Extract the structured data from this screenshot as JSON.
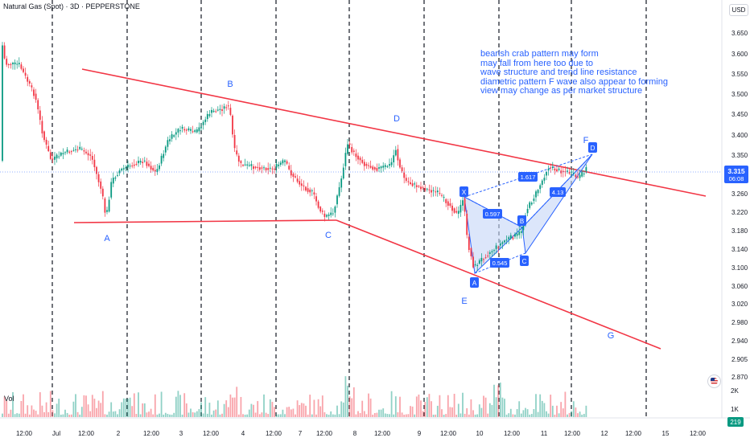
{
  "header": {
    "title": "Natural Gas (Spot) · 3D · PEPPERSTONE"
  },
  "currency": "USD",
  "price_axis": {
    "ticks": [
      "3.650",
      "3.600",
      "3.550",
      "3.500",
      "3.450",
      "3.400",
      "3.350",
      "3.260",
      "3.220",
      "3.180",
      "3.140",
      "3.100",
      "3.060",
      "3.020",
      "2.980",
      "2.940",
      "2.905",
      "2.870"
    ],
    "current_price": "3.315",
    "countdown": "06:08",
    "current_color": "#2962ff"
  },
  "volume": {
    "label": "Vol",
    "ticks": [
      "2K",
      "1K"
    ],
    "current": "219"
  },
  "time_axis": {
    "labels": [
      "12:00",
      "Jul",
      "12:00",
      "2",
      "12:00",
      "3",
      "12:00",
      "4",
      "12:00",
      "7",
      "12:00",
      "8",
      "12:00",
      "9",
      "12:00",
      "10",
      "12:00",
      "11",
      "12:00",
      "12",
      "12:00",
      "15",
      "12:00"
    ]
  },
  "annotation_note": {
    "lines": [
      "bearish crab pattern may form",
      "may fall from here too due to",
      "wave structure and trend line resistance",
      "diametric pattern F wave also appear to forming",
      "view may change as per market structure"
    ]
  },
  "wave_labels": [
    "A",
    "B",
    "C",
    "D",
    "E",
    "F",
    "G"
  ],
  "harmonic": {
    "points": [
      "X",
      "A",
      "B",
      "C",
      "D"
    ],
    "ratios": [
      "0.597",
      "0.545",
      "1.617",
      "4.13"
    ],
    "fill_color": "#c5d5f7",
    "line_color": "#2962ff"
  },
  "colors": {
    "up": "#089981",
    "down": "#f23645",
    "trendline": "#f23645",
    "accent": "#2962ff"
  }
}
